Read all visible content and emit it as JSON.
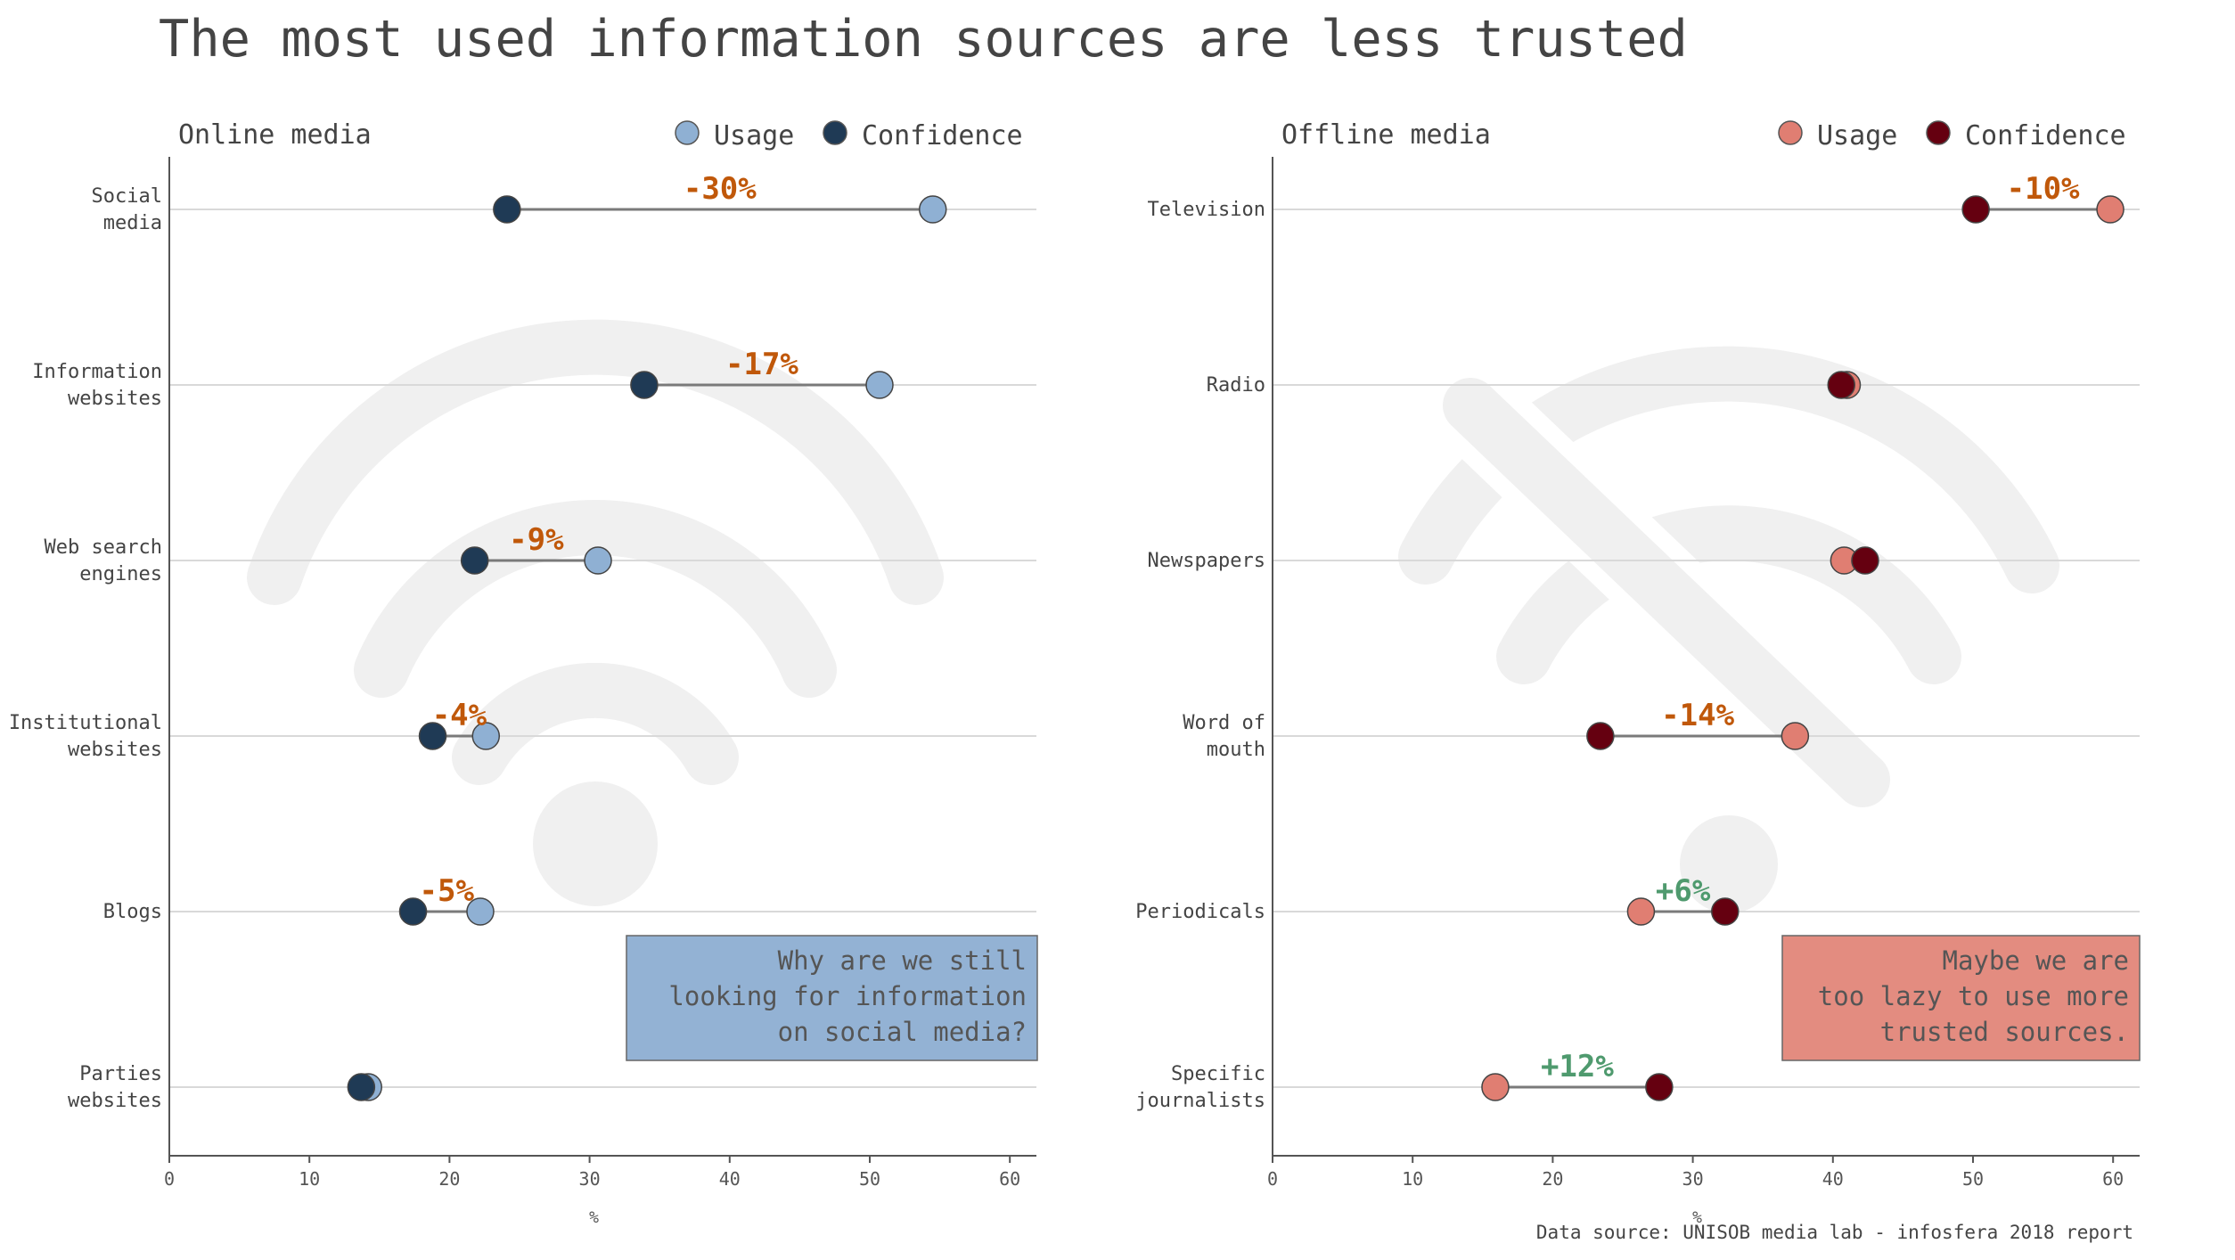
{
  "title": "The most used information sources are less trusted",
  "source": "Data source: UNISOB media lab - infosfera 2018 report",
  "colors": {
    "online_usage": "#8fb0d3",
    "online_confidence": "#1f3a55",
    "offline_usage": "#e07e72",
    "offline_confidence": "#650010",
    "negative_label": "#c0580a",
    "positive_label": "#4f9a6e",
    "online_note_bg": "#93b2d4",
    "offline_note_bg": "#e38c80",
    "gridline": "#d9d9d9",
    "connector": "#7a7a7a",
    "watermark": "#f0f0f0"
  },
  "chart_data": [
    {
      "type": "dumbbell",
      "subtitle": "Online media",
      "legend": [
        "Usage",
        "Confidence"
      ],
      "legend_position": "top-right",
      "xlabel": "%",
      "xlim": [
        0,
        62
      ],
      "xticks": [
        0,
        10,
        20,
        30,
        40,
        50,
        60
      ],
      "watermark_icon": "wifi-icon",
      "note": [
        "Why are we still",
        "looking for information",
        "on social media?"
      ],
      "categories": [
        [
          "Social",
          "media"
        ],
        [
          "Information",
          "websites"
        ],
        [
          "Web search",
          "engines"
        ],
        [
          "Institutional",
          "websites"
        ],
        [
          "Blogs"
        ],
        [
          "Parties",
          "websites"
        ]
      ],
      "series": [
        {
          "name": "Usage",
          "values": [
            54.5,
            50.7,
            30.6,
            22.6,
            22.2,
            14.2
          ]
        },
        {
          "name": "Confidence",
          "values": [
            24.1,
            33.9,
            21.8,
            18.8,
            17.4,
            13.7
          ]
        }
      ],
      "diff_labels": [
        "-30%",
        "-17%",
        "-9%",
        "-4%",
        "-5%",
        ""
      ]
    },
    {
      "type": "dumbbell",
      "subtitle": "Offline media",
      "legend": [
        "Usage",
        "Confidence"
      ],
      "legend_position": "top-right",
      "xlabel": "%",
      "xlim": [
        0,
        62
      ],
      "xticks": [
        0,
        10,
        20,
        30,
        40,
        50,
        60
      ],
      "watermark_icon": "wifi-off-icon",
      "note": [
        "Maybe we are",
        "too lazy to use more",
        "trusted sources."
      ],
      "categories": [
        [
          "Television"
        ],
        [
          "Radio"
        ],
        [
          "Newspapers"
        ],
        [
          "Word of",
          "mouth"
        ],
        [
          "Periodicals"
        ],
        [
          "Specific",
          "journalists"
        ]
      ],
      "series": [
        {
          "name": "Usage",
          "values": [
            59.8,
            41.0,
            40.8,
            37.3,
            26.3,
            15.9
          ]
        },
        {
          "name": "Confidence",
          "values": [
            50.2,
            40.6,
            42.3,
            23.4,
            32.3,
            27.6
          ]
        }
      ],
      "diff_labels": [
        "-10%",
        "",
        "",
        "-14%",
        "+6%",
        "+12%"
      ]
    }
  ]
}
